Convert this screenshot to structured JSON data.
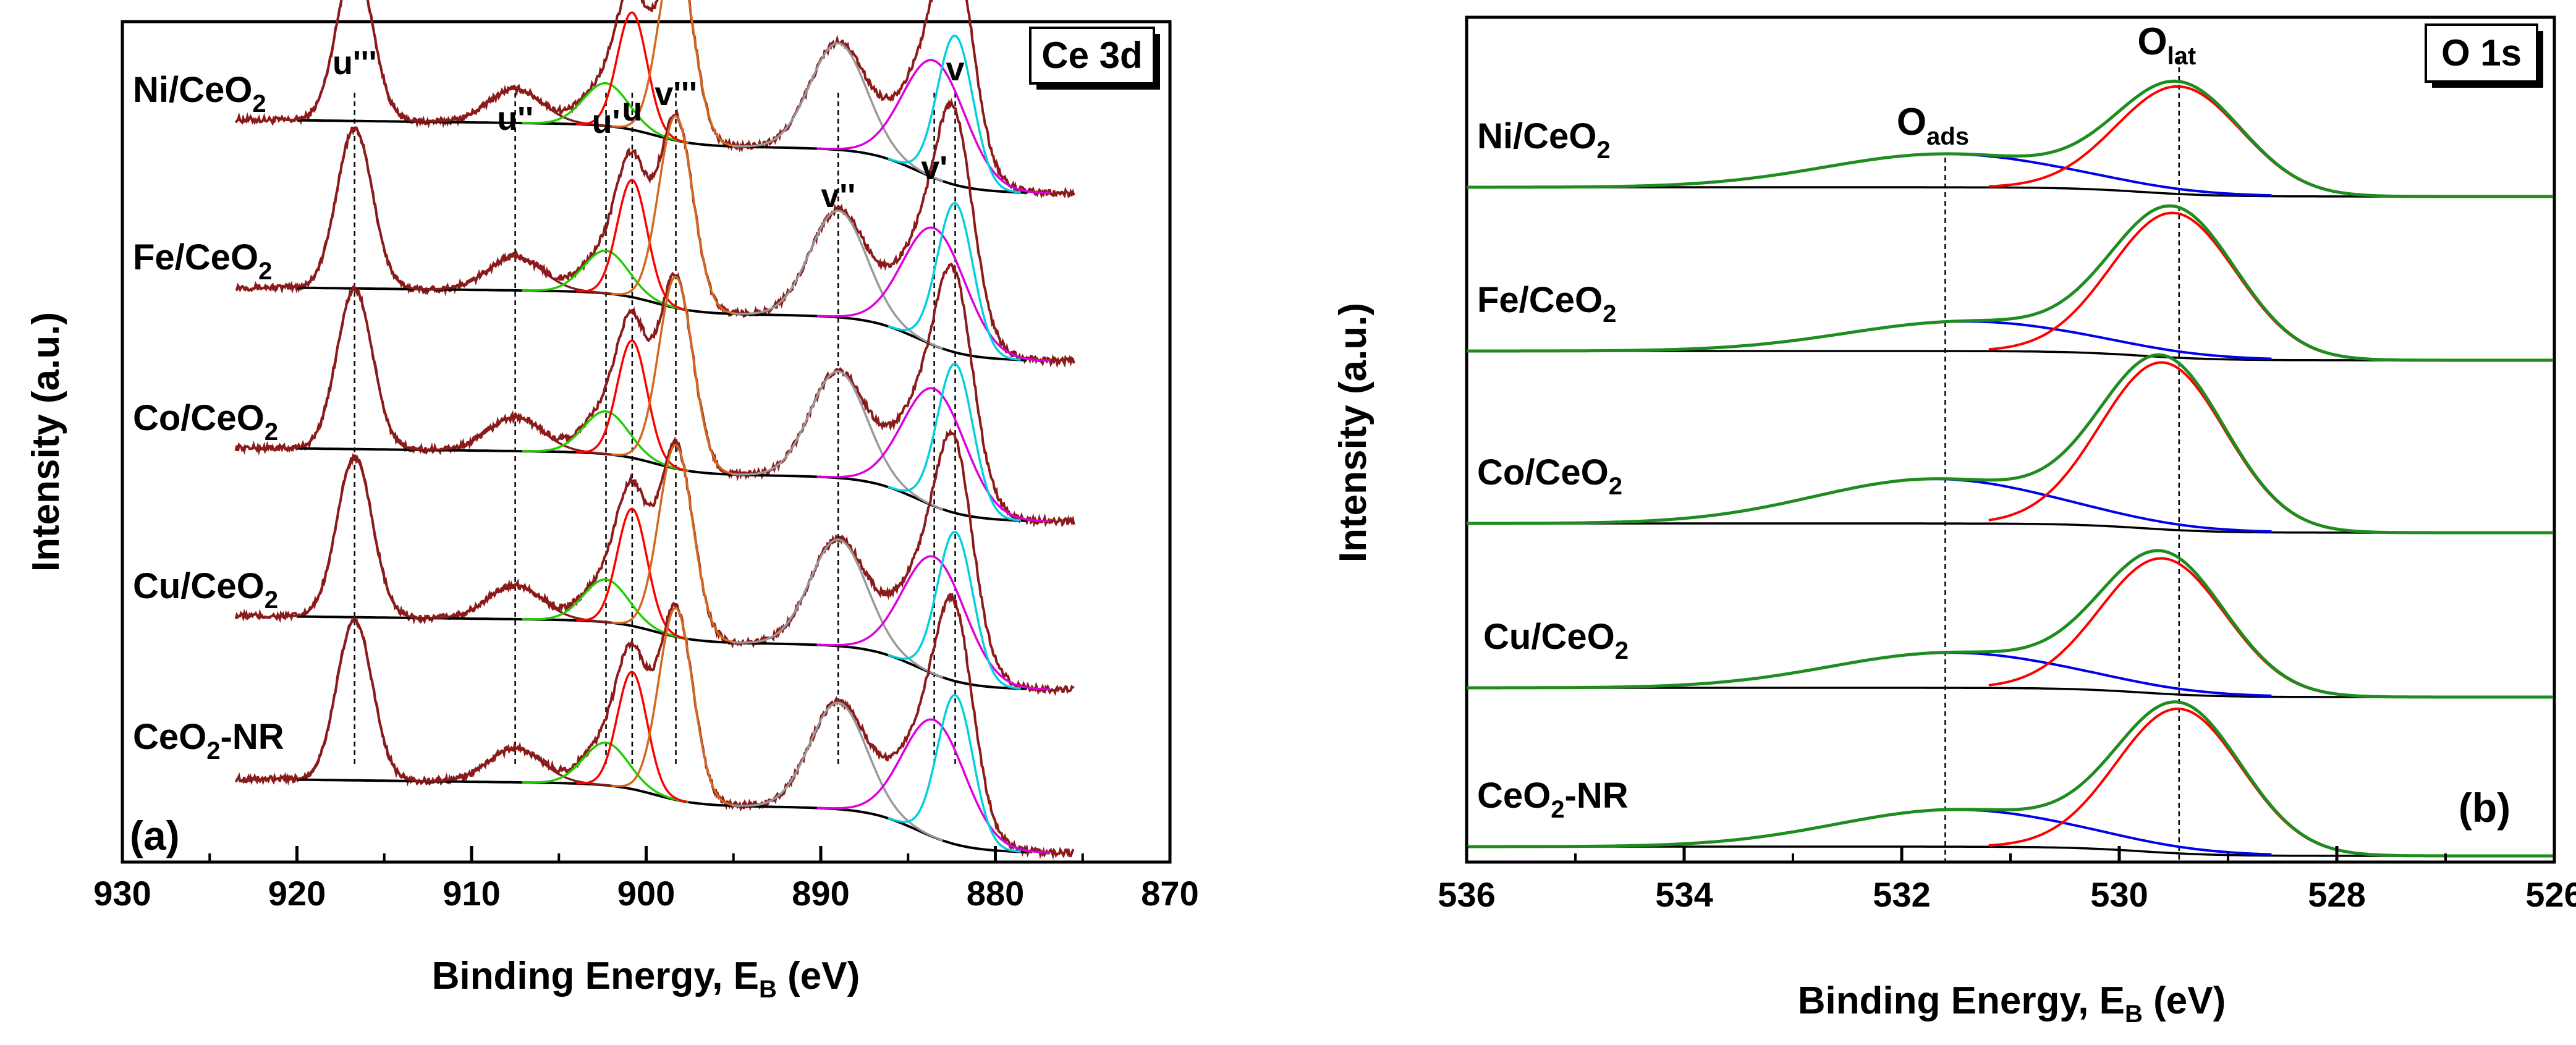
{
  "figure": {
    "colors": {
      "measured": "#8b1a1a",
      "background": "#000000",
      "envelope": "#1e8c1e",
      "component_red": "#ff0000",
      "component_green": "#22cc00",
      "component_orange": "#d2691e",
      "component_gray": "#999999",
      "component_magenta": "#dd00dd",
      "component_cyan": "#00d0e0",
      "component_blue": "#0000ee",
      "component_lat": "#ff0000",
      "guide_line": "#000000"
    }
  },
  "chart_data": [
    {
      "panel": "(a)",
      "type": "line",
      "title": "Ce 3d",
      "xlabel": "Binding Energy, E",
      "xlabel_sub": "B",
      "xlabel_unit": "(eV)",
      "ylabel": "Intensity (a.u.)",
      "xlim": [
        930,
        870
      ],
      "x_ticks": [
        "930",
        "920",
        "910",
        "900",
        "890",
        "880",
        "870"
      ],
      "x_tick_values": [
        930,
        920,
        910,
        900,
        890,
        880,
        870
      ],
      "legend": "none",
      "series": [
        {
          "name": "Ni/CeO2",
          "label_main": "Ni/CeO",
          "label_sub": "2",
          "offset": 4
        },
        {
          "name": "Fe/CeO2",
          "label_main": "Fe/CeO",
          "label_sub": "2",
          "offset": 3
        },
        {
          "name": "Co/CeO2",
          "label_main": "Co/CeO",
          "label_sub": "2",
          "offset": 2
        },
        {
          "name": "Cu/CeO2",
          "label_main": "Cu/CeO",
          "label_sub": "2",
          "offset": 1
        },
        {
          "name": "CeO2-NR",
          "label_main": "CeO",
          "label_sub": "2",
          "label_suffix": "-NR",
          "offset": 0
        }
      ],
      "peaks": [
        {
          "label": "u'''",
          "center": 916.7,
          "fwhm": 2.4,
          "height": 0.75,
          "color_key": "measured"
        },
        {
          "label": "u''",
          "center": 907.5,
          "fwhm": 3.6,
          "height": 0.16,
          "color_key": "measured"
        },
        {
          "label": "u'",
          "center": 902.3,
          "fwhm": 3.0,
          "height": 0.2,
          "color_key": "component_green"
        },
        {
          "label": "u",
          "center": 900.8,
          "fwhm": 2.0,
          "height": 0.55,
          "color_key": "component_red"
        },
        {
          "label": "v'''",
          "center": 898.3,
          "fwhm": 2.3,
          "height": 0.9,
          "color_key": "component_orange"
        },
        {
          "label": "v''",
          "center": 889.0,
          "fwhm": 3.8,
          "height": 0.5,
          "color_key": "component_gray"
        },
        {
          "label": "v'",
          "center": 883.5,
          "fwhm": 4.2,
          "height": 0.55,
          "color_key": "component_magenta"
        },
        {
          "label": "v",
          "center": 882.3,
          "fwhm": 2.4,
          "height": 0.7,
          "color_key": "component_cyan"
        }
      ],
      "guide_lines_at": [
        916.7,
        907.5,
        902.3,
        900.8,
        898.3,
        889.0,
        883.5,
        882.3
      ]
    },
    {
      "panel": "(b)",
      "type": "line",
      "title": "O 1s",
      "xlabel": "Binding Energy, E",
      "xlabel_sub": "B",
      "xlabel_unit": "(eV)",
      "ylabel": "Intensity (a.u.)",
      "xlim": [
        536,
        526
      ],
      "x_ticks": [
        "536",
        "534",
        "532",
        "530",
        "528",
        "526"
      ],
      "x_tick_values": [
        536,
        534,
        532,
        530,
        528,
        526
      ],
      "legend": "none",
      "series": [
        {
          "name": "Ni/CeO2",
          "label_main": "Ni/CeO",
          "label_sub": "2",
          "offset": 4,
          "ads_height": 0.18,
          "lat_height": 0.58,
          "ads_center": 531.6,
          "lat_center": 529.45
        },
        {
          "name": "Fe/CeO2",
          "label_main": "Fe/CeO",
          "label_sub": "2",
          "offset": 3,
          "ads_height": 0.16,
          "lat_height": 0.78,
          "ads_center": 531.4,
          "lat_center": 529.5
        },
        {
          "name": "Co/CeO2",
          "label_main": "Co/CeO",
          "label_sub": "2",
          "offset": 2,
          "ads_height": 0.24,
          "lat_height": 0.9,
          "ads_center": 531.7,
          "lat_center": 529.6
        },
        {
          "name": "Cu/CeO2",
          "label_main": "Cu/CeO",
          "label_sub": "2",
          "offset": 1,
          "ads_height": 0.19,
          "lat_height": 0.73,
          "ads_center": 531.55,
          "lat_center": 529.6
        },
        {
          "name": "CeO2-NR",
          "label_main": "CeO",
          "label_sub": "2",
          "label_suffix": "-NR",
          "offset": 0,
          "ads_height": 0.2,
          "lat_height": 0.78,
          "ads_center": 531.5,
          "lat_center": 529.45
        }
      ],
      "annotations": [
        {
          "text": "O",
          "sub": "ads",
          "x": 531.6
        },
        {
          "text": "O",
          "sub": "lat",
          "x": 529.45
        }
      ],
      "guide_lines_at": [
        531.6,
        529.45
      ]
    }
  ]
}
